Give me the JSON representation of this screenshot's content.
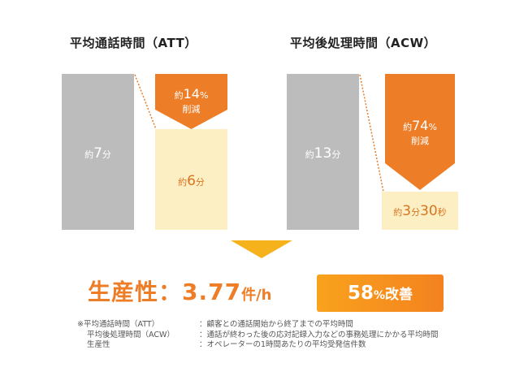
{
  "chart_data": [
    {
      "type": "bar",
      "title": "平均通話時間（ATT）",
      "categories": [
        "",
        ""
      ],
      "values": [
        7,
        6
      ],
      "unit": "分",
      "bar_labels": [
        {
          "prefix": "約",
          "number": "7",
          "unit": "分"
        },
        {
          "prefix": "約",
          "number": "6",
          "unit": "分"
        }
      ],
      "reduction": {
        "prefix": "約",
        "value": 14,
        "unit": "%",
        "label": "削減"
      }
    },
    {
      "type": "bar",
      "title": "平均後処理時間（ACW）",
      "categories": [
        "",
        ""
      ],
      "values": [
        13,
        3.5
      ],
      "unit": "分",
      "bar_labels": [
        {
          "prefix": "約",
          "number": "13",
          "unit": "分"
        },
        {
          "prefix": "約",
          "number": "3",
          "unit": "分",
          "number2": "30",
          "unit2": "秒"
        }
      ],
      "reduction": {
        "prefix": "約",
        "value": 74,
        "unit": "%",
        "label": "削減"
      }
    }
  ],
  "productivity": {
    "label": "生産性：",
    "value": "3.77",
    "unit": "件/h"
  },
  "badge": {
    "value": "58",
    "unit": "%",
    "label": "改善"
  },
  "notes": [
    {
      "term": "※平均通話時間（ATT）",
      "definition": "：顧客との通話開始から終了までの平均時間"
    },
    {
      "term": "平均後処理時間（ACW）",
      "definition": "：通話が終わった後の応対記録入力などの事務処理にかかる平均時間"
    },
    {
      "term": "生産性",
      "definition": "：オペレーターの1時間あたりの平均受発信件数"
    }
  ],
  "colors": {
    "orange": "#ee7d27",
    "gray_bar": "#bcbcbc",
    "pale_bar": "#fdefc4",
    "arrow_yellow": "#f6b21b"
  }
}
